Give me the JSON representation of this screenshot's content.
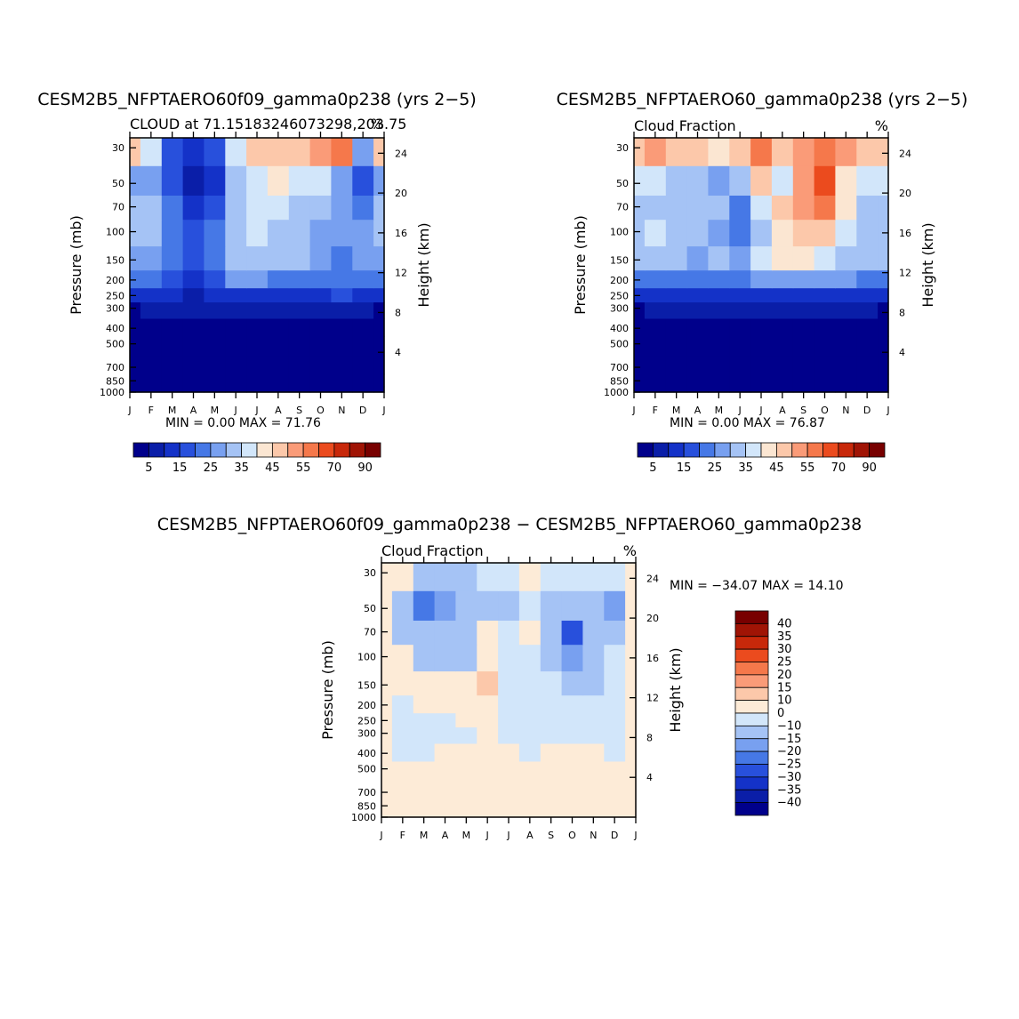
{
  "months": [
    "J",
    "F",
    "M",
    "A",
    "M",
    "J",
    "J",
    "A",
    "S",
    "O",
    "N",
    "D",
    "J"
  ],
  "pressure_ticks": [
    "30",
    "50",
    "70",
    "100",
    "150",
    "200",
    "250",
    "300",
    "400",
    "500",
    "700",
    "850",
    "1000"
  ],
  "pressure_values": [
    30,
    50,
    70,
    100,
    150,
    200,
    250,
    300,
    400,
    500,
    700,
    850,
    1000
  ],
  "height_ticks": [
    "24",
    "20",
    "16",
    "12",
    "8",
    "4"
  ],
  "height_values": [
    24,
    20,
    16,
    12,
    8,
    4
  ],
  "y_label": "Pressure (mb)",
  "y2_label": "Height (km)",
  "panels": [
    {
      "title": "CESM2B5_NFPTAERO60f09_gamma0p238 (yrs 2−5)",
      "left_label": "CLOUD at 71.15183246073298,203.75",
      "right_label": "%",
      "minmax": "MIN =    0.00 MAX =   71.76"
    },
    {
      "title": "CESM2B5_NFPTAERO60_gamma0p238 (yrs 2−5)",
      "left_label": "Cloud Fraction",
      "right_label": "%",
      "minmax": "MIN =    0.00 MAX =   76.87"
    },
    {
      "title": "CESM2B5_NFPTAERO60f09_gamma0p238 − CESM2B5_NFPTAERO60_gamma0p238",
      "left_label": "Cloud Fraction",
      "right_label": "%",
      "minmax": "MIN = −34.07 MAX =   14.10"
    }
  ],
  "colorbar_abs": {
    "colors": [
      "#00008b",
      "#0a1ea8",
      "#1432c8",
      "#2850dc",
      "#4678e6",
      "#78a0f0",
      "#a5c3f5",
      "#d2e6fa",
      "#fbe6d2",
      "#fcc8aa",
      "#fa9b78",
      "#f5784b",
      "#eb4b1e",
      "#c8280a",
      "#a01405",
      "#780000"
    ],
    "labels": [
      "5",
      "15",
      "25",
      "35",
      "45",
      "55",
      "70",
      "90"
    ]
  },
  "colorbar_diff": {
    "colors": [
      "#00008b",
      "#0a1ea8",
      "#1432c8",
      "#2850dc",
      "#4678e6",
      "#78a0f0",
      "#a5c3f5",
      "#d2e6fa",
      "#fdebd7",
      "#fcc8aa",
      "#fa9b78",
      "#f5784b",
      "#eb4b1e",
      "#c8280a",
      "#a01405",
      "#780000"
    ],
    "labels": [
      "40",
      "35",
      "30",
      "25",
      "20",
      "15",
      "10",
      "0",
      "−10",
      "−15",
      "−20",
      "−25",
      "−30",
      "−35",
      "−40"
    ]
  },
  "chart_data": [
    {
      "type": "heatmap",
      "title": "CESM2B5_NFPTAERO60f09_gamma0p238 (yrs 2−5)",
      "subtitle": "CLOUD at 71.15183246073298,203.75",
      "units": "%",
      "x": [
        "J",
        "F",
        "M",
        "A",
        "M",
        "J",
        "J",
        "A",
        "S",
        "O",
        "N",
        "D",
        "J"
      ],
      "y_pressure_mb": [
        1000,
        850,
        700,
        500,
        400,
        300,
        250,
        200,
        150,
        100,
        70,
        50,
        30
      ],
      "z": [
        [
          3,
          3,
          3,
          3,
          3,
          3,
          3,
          3,
          3,
          3,
          3,
          3,
          3
        ],
        [
          3,
          3,
          3,
          3,
          3,
          3,
          3,
          3,
          3,
          3,
          3,
          3,
          3
        ],
        [
          3,
          3,
          3,
          3,
          3,
          3,
          3,
          3,
          3,
          3,
          3,
          3,
          3
        ],
        [
          3,
          3,
          3,
          3,
          3,
          3,
          3,
          3,
          3,
          3,
          3,
          3,
          3
        ],
        [
          3,
          3,
          3,
          3,
          3,
          3,
          3,
          3,
          3,
          3,
          3,
          3,
          3
        ],
        [
          4,
          5,
          6,
          7,
          8,
          8,
          8,
          7,
          7,
          8,
          8,
          9,
          4
        ],
        [
          12,
          12,
          10,
          9,
          12,
          14,
          14,
          13,
          13,
          14,
          15,
          14,
          12
        ],
        [
          22,
          20,
          17,
          13,
          18,
          25,
          25,
          22,
          22,
          24,
          22,
          23,
          22
        ],
        [
          25,
          28,
          20,
          15,
          20,
          30,
          32,
          30,
          30,
          27,
          22,
          27,
          25
        ],
        [
          30,
          32,
          24,
          17,
          22,
          30,
          35,
          33,
          33,
          28,
          25,
          27,
          30
        ],
        [
          30,
          32,
          20,
          12,
          18,
          30,
          35,
          35,
          33,
          30,
          26,
          20,
          30
        ],
        [
          28,
          28,
          15,
          8,
          14,
          30,
          38,
          40,
          38,
          35,
          28,
          15,
          28
        ],
        [
          45,
          35,
          18,
          12,
          18,
          35,
          45,
          48,
          45,
          50,
          55,
          25,
          45
        ]
      ],
      "min": 0.0,
      "max": 71.76
    },
    {
      "type": "heatmap",
      "title": "CESM2B5_NFPTAERO60_gamma0p238 (yrs 2−5)",
      "subtitle": "Cloud Fraction",
      "units": "%",
      "x": [
        "J",
        "F",
        "M",
        "A",
        "M",
        "J",
        "J",
        "A",
        "S",
        "O",
        "N",
        "D",
        "J"
      ],
      "y_pressure_mb": [
        1000,
        850,
        700,
        500,
        400,
        300,
        250,
        200,
        150,
        100,
        70,
        50,
        30
      ],
      "z": [
        [
          3,
          3,
          3,
          3,
          3,
          3,
          3,
          3,
          3,
          3,
          3,
          3,
          3
        ],
        [
          3,
          3,
          3,
          3,
          3,
          3,
          3,
          3,
          3,
          3,
          3,
          3,
          3
        ],
        [
          3,
          3,
          3,
          3,
          3,
          3,
          3,
          3,
          3,
          3,
          3,
          3,
          3
        ],
        [
          3,
          3,
          3,
          3,
          3,
          3,
          3,
          3,
          3,
          3,
          3,
          3,
          3
        ],
        [
          3,
          3,
          3,
          3,
          3,
          3,
          3,
          3,
          3,
          3,
          3,
          3,
          3
        ],
        [
          4,
          5,
          6,
          7,
          8,
          8,
          8,
          7,
          7,
          8,
          8,
          9,
          4
        ],
        [
          12,
          12,
          11,
          11,
          12,
          13,
          14,
          14,
          14,
          14,
          14,
          14,
          12
        ],
        [
          22,
          21,
          20,
          20,
          22,
          22,
          25,
          26,
          27,
          27,
          25,
          23,
          22
        ],
        [
          30,
          32,
          30,
          28,
          30,
          28,
          35,
          40,
          40,
          38,
          32,
          30,
          30
        ],
        [
          33,
          35,
          30,
          30,
          28,
          22,
          33,
          42,
          45,
          45,
          35,
          32,
          33
        ],
        [
          33,
          32,
          30,
          30,
          30,
          20,
          35,
          45,
          50,
          55,
          40,
          33,
          33
        ],
        [
          35,
          35,
          30,
          32,
          28,
          30,
          45,
          38,
          50,
          60,
          42,
          35,
          35
        ],
        [
          45,
          50,
          45,
          45,
          40,
          45,
          55,
          45,
          50,
          55,
          50,
          45,
          45
        ]
      ],
      "min": 0.0,
      "max": 76.87
    },
    {
      "type": "heatmap",
      "title": "CESM2B5_NFPTAERO60f09_gamma0p238 − CESM2B5_NFPTAERO60_gamma0p238",
      "subtitle": "Cloud Fraction",
      "units": "%",
      "x": [
        "J",
        "F",
        "M",
        "A",
        "M",
        "J",
        "J",
        "A",
        "S",
        "O",
        "N",
        "D",
        "J"
      ],
      "y_pressure_mb": [
        1000,
        850,
        700,
        500,
        400,
        300,
        250,
        200,
        150,
        100,
        70,
        50,
        30
      ],
      "z": [
        [
          3,
          3,
          3,
          3,
          3,
          3,
          3,
          3,
          3,
          3,
          3,
          3,
          3
        ],
        [
          3,
          3,
          3,
          3,
          3,
          3,
          3,
          3,
          3,
          3,
          3,
          3,
          3
        ],
        [
          3,
          3,
          3,
          3,
          3,
          3,
          3,
          3,
          3,
          3,
          3,
          3,
          3
        ],
        [
          3,
          3,
          3,
          3,
          3,
          3,
          3,
          3,
          3,
          3,
          3,
          3,
          3
        ],
        [
          3,
          -3,
          -3,
          2,
          2,
          2,
          2,
          -3,
          3,
          3,
          3,
          -3,
          3
        ],
        [
          3,
          -3,
          -3,
          -3,
          -3,
          3,
          -3,
          -3,
          -3,
          -3,
          -3,
          -3,
          3
        ],
        [
          3,
          -3,
          -3,
          -3,
          3,
          3,
          -3,
          -3,
          -3,
          -3,
          -3,
          -3,
          3
        ],
        [
          3,
          -3,
          3,
          3,
          3,
          5,
          -3,
          -3,
          -3,
          -3,
          -3,
          -3,
          3
        ],
        [
          3,
          3,
          3,
          3,
          3,
          12,
          -3,
          -3,
          -3,
          -12,
          -12,
          -3,
          3
        ],
        [
          3,
          3,
          -12,
          -12,
          -12,
          8,
          -3,
          -3,
          -12,
          -20,
          -12,
          -3,
          3
        ],
        [
          3,
          -12,
          -12,
          -12,
          -12,
          5,
          -3,
          3,
          -15,
          -30,
          -15,
          -12,
          3
        ],
        [
          3,
          -15,
          -25,
          -20,
          -15,
          -12,
          -12,
          -3,
          -12,
          -15,
          -12,
          -20,
          3
        ],
        [
          3,
          3,
          -12,
          -12,
          -12,
          -3,
          -3,
          3,
          -3,
          -3,
          -3,
          -3,
          3
        ]
      ],
      "min": -34.07,
      "max": 14.1
    }
  ]
}
